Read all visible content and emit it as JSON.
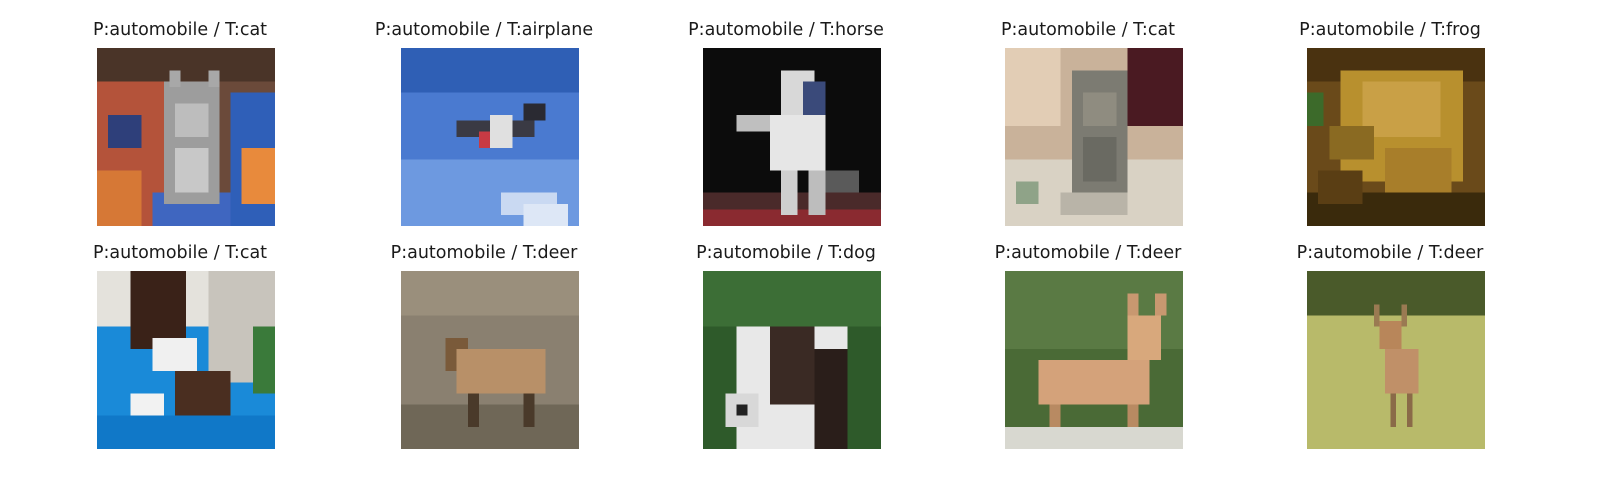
{
  "figure": {
    "images": [
      {
        "title": "P:automobile / T:cat",
        "subject": "cat-icon"
      },
      {
        "title": "P:automobile / T:airplane",
        "subject": "airplane-icon"
      },
      {
        "title": "P:automobile / T:horse",
        "subject": "horse-icon"
      },
      {
        "title": "P:automobile / T:cat",
        "subject": "cat-icon"
      },
      {
        "title": "P:automobile / T:frog",
        "subject": "frog-icon"
      },
      {
        "title": "P:automobile / T:cat",
        "subject": "cat-icon"
      },
      {
        "title": "P:automobile / T:deer",
        "subject": "deer-icon"
      },
      {
        "title": "P:automobile / T:dog",
        "subject": "dog-icon"
      },
      {
        "title": "P:automobile / T:deer",
        "subject": "deer-icon"
      },
      {
        "title": "P:automobile / T:deer",
        "subject": "deer-icon"
      }
    ]
  }
}
